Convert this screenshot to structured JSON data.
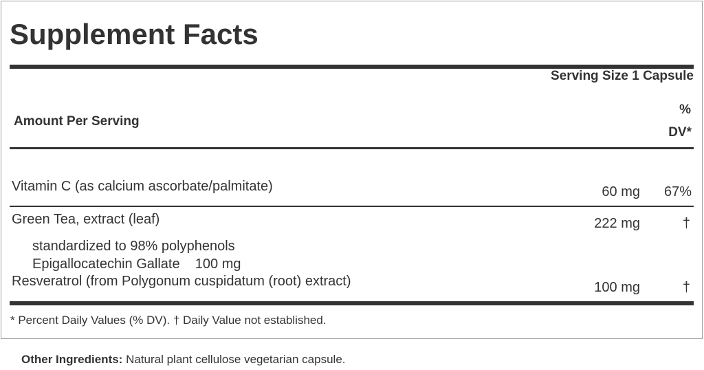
{
  "title": "Supplement Facts",
  "serving_size": "Serving Size 1 Capsule",
  "amount_per_serving": "Amount Per Serving",
  "dv_header": {
    "line1": "%",
    "line2": "DV*"
  },
  "rows": [
    {
      "name": "Vitamin C (as calcium ascorbate/palmitate)",
      "amount": "60 mg",
      "dv": "67%"
    },
    {
      "name": "Green Tea, extract (leaf)",
      "amount": "222 mg",
      "dv": "†",
      "sub": [
        "standardized to 98% polyphenols",
        "Epigallocatechin Gallate    100 mg"
      ]
    },
    {
      "name": "Resveratrol (from Polygonum cuspidatum (root) extract)",
      "amount": "100 mg",
      "dv": "†"
    }
  ],
  "footnote": "* Percent Daily Values (% DV). † Daily Value not established.",
  "other_ingredients": {
    "label": "Other Ingredients:",
    "text": " Natural plant cellulose vegetarian capsule."
  }
}
